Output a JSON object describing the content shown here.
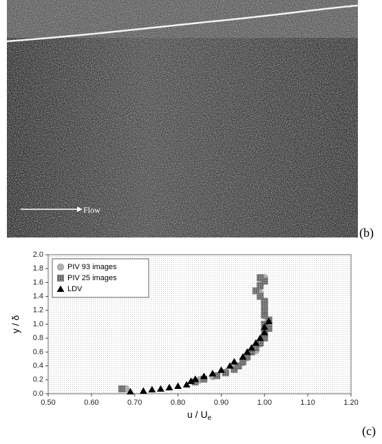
{
  "figure_b": {
    "annotation": "Flow",
    "panel_label": "(b)"
  },
  "chart_data": {
    "type": "scatter",
    "panel_label": "(c)",
    "xlabel": "u / U",
    "xlabel_sub": "e",
    "ylabel": "y / δ",
    "xlim": [
      0.5,
      1.2
    ],
    "xticks": [
      {
        "value": 0.5,
        "label": "0.50"
      },
      {
        "value": 0.6,
        "label": "0.60"
      },
      {
        "value": 0.7,
        "label": "0.70"
      },
      {
        "value": 0.8,
        "label": "0.80"
      },
      {
        "value": 0.9,
        "label": "0.90"
      },
      {
        "value": 1.0,
        "label": "1.00"
      },
      {
        "value": 1.1,
        "label": "1.10"
      },
      {
        "value": 1.2,
        "label": "1.20"
      }
    ],
    "ylim": [
      0,
      2
    ],
    "yticks": [
      {
        "value": 0,
        "label": "0.0"
      },
      {
        "value": 0.2,
        "label": "0.2"
      },
      {
        "value": 0.4,
        "label": "0.4"
      },
      {
        "value": 0.6,
        "label": "0.6"
      },
      {
        "value": 0.8,
        "label": "0.8"
      },
      {
        "value": 1.0,
        "label": "1.0"
      },
      {
        "value": 1.2,
        "label": "1.2"
      },
      {
        "value": 1.4,
        "label": "1.4"
      },
      {
        "value": 1.6,
        "label": "1.6"
      },
      {
        "value": 1.8,
        "label": "1.8"
      },
      {
        "value": 2.0,
        "label": "2.0"
      }
    ],
    "legend": "upper left",
    "series": [
      {
        "name": "PIV 93 images",
        "color": "#b0b0b0",
        "marker": "circle",
        "x": [
          0.68,
          0.85,
          0.88,
          0.91,
          0.93,
          0.95,
          0.96,
          0.98,
          0.99,
          1.0,
          1.0,
          1.01,
          1.0,
          1.0,
          1.0,
          0.99,
          0.99,
          1.0
        ],
        "values": [
          0.07,
          0.2,
          0.25,
          0.31,
          0.37,
          0.45,
          0.52,
          0.62,
          0.72,
          0.82,
          0.92,
          1.02,
          1.12,
          1.22,
          1.32,
          1.45,
          1.58,
          1.67
        ]
      },
      {
        "name": "PIV 25 images",
        "color": "#6a6a6a",
        "marker": "square",
        "x": [
          0.67,
          0.84,
          0.86,
          0.89,
          0.91,
          0.93,
          0.94,
          0.95,
          0.96,
          0.97,
          0.98,
          0.99,
          1.0,
          1.0,
          1.01,
          1.0,
          1.01,
          1.0,
          1.0,
          1.0,
          1.0,
          0.99,
          0.98,
          0.99,
          1.0,
          0.99
        ],
        "values": [
          0.07,
          0.17,
          0.21,
          0.26,
          0.3,
          0.35,
          0.4,
          0.46,
          0.53,
          0.6,
          0.66,
          0.73,
          0.8,
          0.87,
          0.94,
          1.0,
          1.06,
          1.13,
          1.2,
          1.27,
          1.33,
          1.4,
          1.48,
          1.55,
          1.62,
          1.67
        ]
      },
      {
        "name": "LDV",
        "color": "#000000",
        "marker": "triangle",
        "x": [
          0.69,
          0.72,
          0.74,
          0.76,
          0.78,
          0.8,
          0.82,
          0.83,
          0.84,
          0.86,
          0.88,
          0.9,
          0.92,
          0.93,
          0.95,
          0.96,
          0.97,
          0.98,
          0.99,
          1.0,
          1.0,
          1.01
        ],
        "values": [
          0.03,
          0.04,
          0.06,
          0.07,
          0.09,
          0.11,
          0.13,
          0.18,
          0.21,
          0.25,
          0.29,
          0.34,
          0.4,
          0.46,
          0.53,
          0.6,
          0.66,
          0.73,
          0.8,
          0.88,
          0.96,
          1.04
        ]
      }
    ]
  }
}
